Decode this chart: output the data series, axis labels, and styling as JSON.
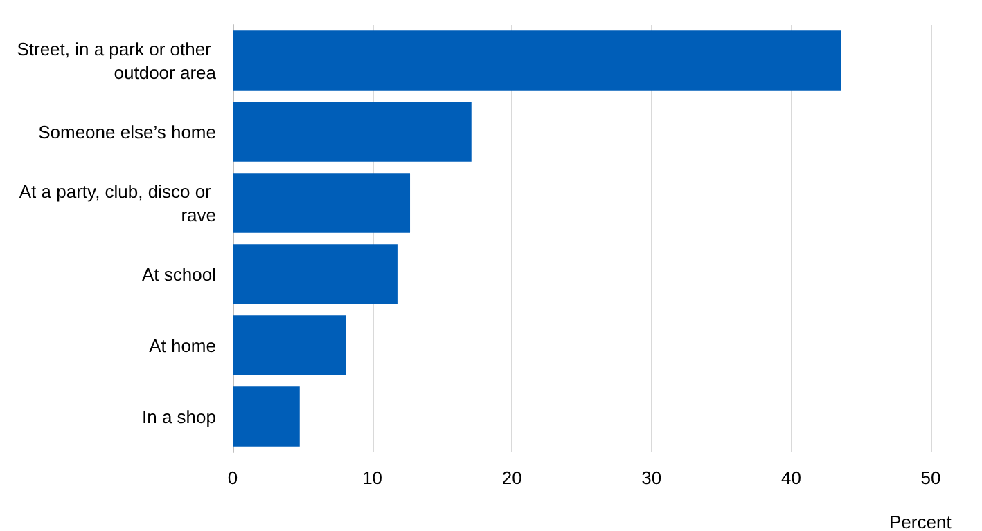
{
  "chart_data": {
    "type": "bar",
    "orientation": "horizontal",
    "categories": [
      "Street, in a park or other outdoor area",
      "Someone else’s home",
      "At a party, club, disco or rave",
      "At school",
      "At home",
      "In a shop"
    ],
    "values": [
      43.6,
      17.1,
      12.7,
      11.8,
      8.1,
      4.8
    ],
    "color": "#005eb8",
    "xlim": [
      0,
      50
    ],
    "xticks": [
      0,
      10,
      20,
      30,
      40,
      50
    ],
    "xlabel": "Percent",
    "grid": "x"
  }
}
